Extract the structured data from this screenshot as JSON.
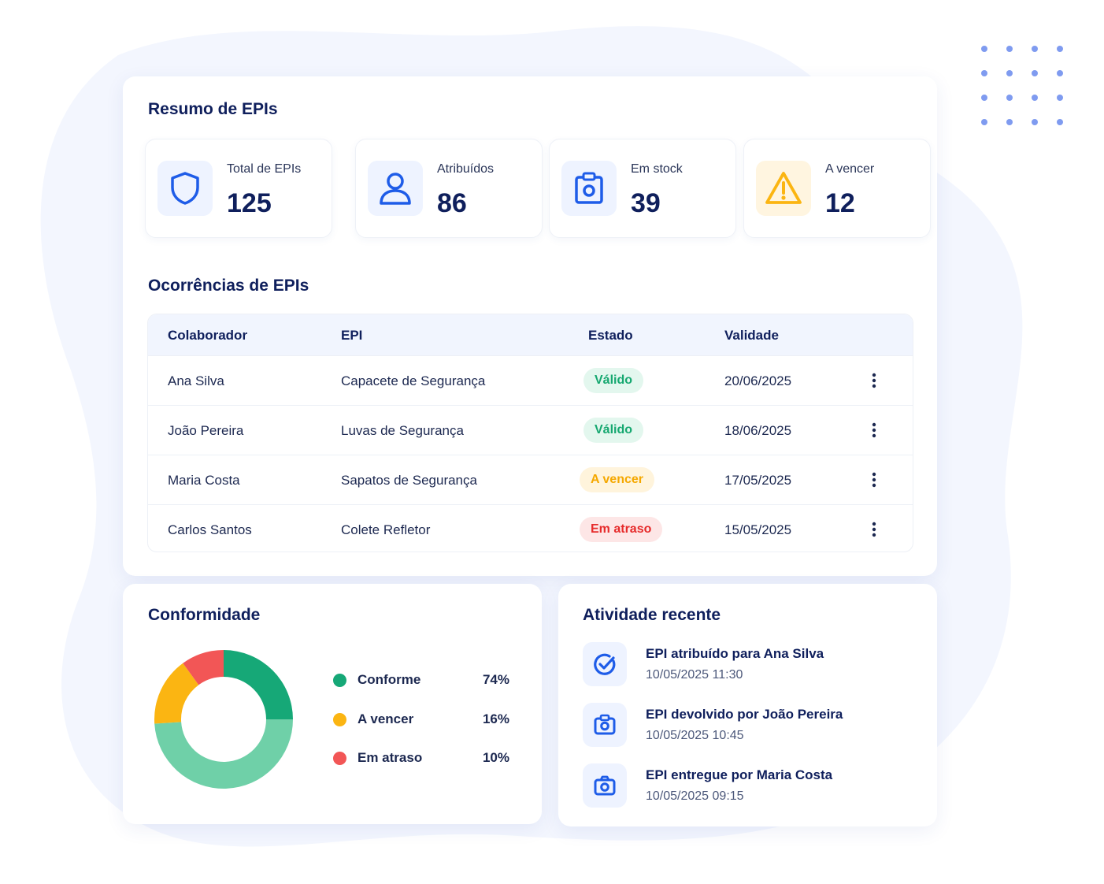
{
  "summary": {
    "title": "Resumo de EPIs",
    "stats": [
      {
        "label": "Total de EPIs",
        "value": "125",
        "icon": "shield-icon"
      },
      {
        "label": "Atribuídos",
        "value": "86",
        "icon": "user-icon"
      },
      {
        "label": "Em stock",
        "value": "39",
        "icon": "clipboard-box-icon"
      },
      {
        "label": "A vencer",
        "value": "12",
        "icon": "warning-icon"
      }
    ]
  },
  "occurrences": {
    "title": "Ocorrências de EPIs",
    "headers": {
      "collaborator": "Colaborador",
      "epi": "EPI",
      "status": "Estado",
      "validity": "Validade"
    },
    "rows": [
      {
        "collaborator": "Ana Silva",
        "epi": "Capacete de Segurança",
        "status": "Válido",
        "status_type": "valid",
        "validity": "20/06/2025"
      },
      {
        "collaborator": "João Pereira",
        "epi": "Luvas de Segurança",
        "status": "Válido",
        "status_type": "valid",
        "validity": "18/06/2025"
      },
      {
        "collaborator": "Maria Costa",
        "epi": "Sapatos de Segurança",
        "status": "A vencer",
        "status_type": "expiring",
        "validity": "17/05/2025"
      },
      {
        "collaborator": "Carlos Santos",
        "epi": "Colete Refletor",
        "status": "Em atraso",
        "status_type": "overdue",
        "validity": "15/05/2025"
      }
    ]
  },
  "compliance": {
    "title": "Conformidade",
    "legend": [
      {
        "name": "Conforme",
        "pct": "74%",
        "color": "#16a877"
      },
      {
        "name": "A vencer",
        "pct": "16%",
        "color": "#fbb512"
      },
      {
        "name": "Em atraso",
        "pct": "10%",
        "color": "#f25656"
      }
    ]
  },
  "chart_data": {
    "type": "pie",
    "labels": [
      "Conforme",
      "A vencer",
      "Em atraso"
    ],
    "values": [
      74,
      16,
      10
    ],
    "colors": [
      "#16a877",
      "#fbb512",
      "#f25656"
    ],
    "donut": true
  },
  "activity": {
    "title": "Atividade recente",
    "items": [
      {
        "title": "EPI atribuído para Ana Silva",
        "time": "10/05/2025 11:30",
        "icon": "check-circle-icon"
      },
      {
        "title": "EPI devolvido por João Pereira",
        "time": "10/05/2025 10:45",
        "icon": "camera-icon"
      },
      {
        "title": "EPI entregue por Maria Costa",
        "time": "10/05/2025 09:15",
        "icon": "camera-icon"
      }
    ]
  },
  "colors": {
    "primary": "#1e5ce8",
    "navy": "#0f1f5c",
    "valid_bg": "#e3f7ee",
    "valid_fg": "#16a870",
    "expiring_bg": "#fff4dc",
    "expiring_fg": "#f5a800",
    "overdue_bg": "#fde6e6",
    "overdue_fg": "#e62b2b"
  }
}
